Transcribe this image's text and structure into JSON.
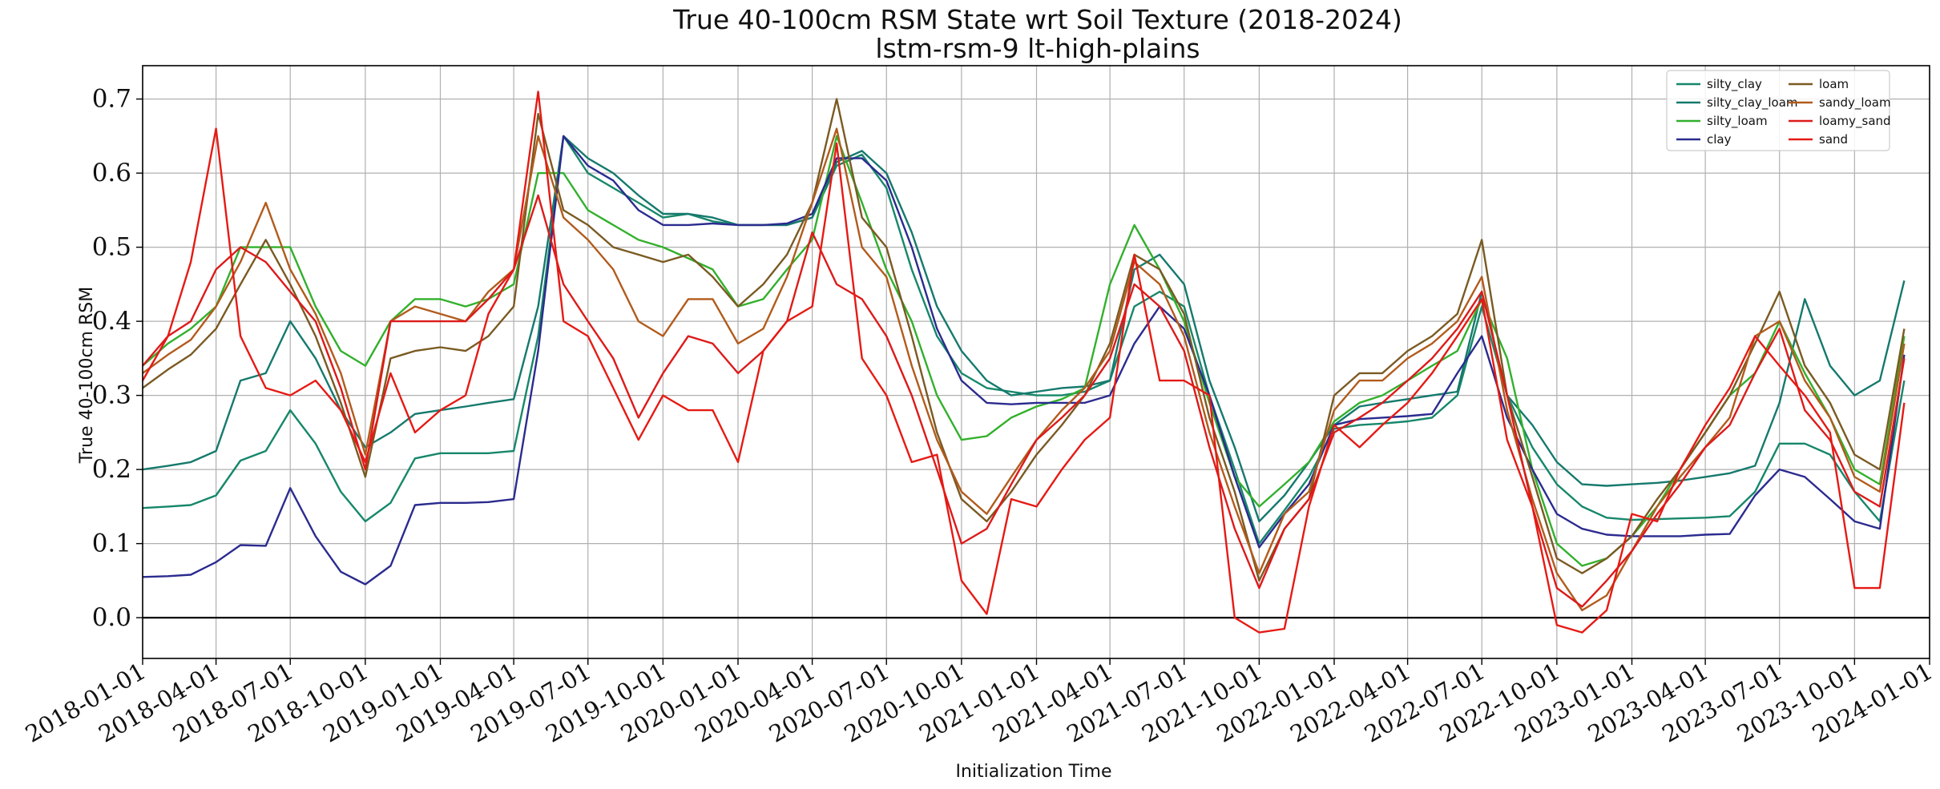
{
  "chart_data": {
    "type": "line",
    "title": "True 40-100cm RSM State wrt Soil Texture (2018-2024)",
    "subtitle": "lstm-rsm-9 lt-high-plains",
    "xlabel": "Initialization Time",
    "ylabel": "True 40-100cm RSM",
    "x_range": [
      "2018-01-01",
      "2024-01-01"
    ],
    "ylim": [
      -0.055,
      0.745
    ],
    "y_ticks": [
      0.0,
      0.1,
      0.2,
      0.3,
      0.4,
      0.5,
      0.6,
      0.7
    ],
    "y_tick_labels": [
      "0.0",
      "0.1",
      "0.2",
      "0.3",
      "0.4",
      "0.5",
      "0.6",
      "0.7"
    ],
    "x_ticks": [
      "2018-01-01",
      "2018-04-01",
      "2018-07-01",
      "2018-10-01",
      "2019-01-01",
      "2019-04-01",
      "2019-07-01",
      "2019-10-01",
      "2020-01-01",
      "2020-04-01",
      "2020-07-01",
      "2020-10-01",
      "2021-01-01",
      "2021-04-01",
      "2021-07-01",
      "2021-10-01",
      "2022-01-01",
      "2022-04-01",
      "2022-07-01",
      "2022-10-01",
      "2023-01-01",
      "2023-04-01",
      "2023-07-01",
      "2023-10-01",
      "2024-01-01"
    ],
    "grid": true,
    "zero_line": true,
    "legend": {
      "placement": "top-right",
      "columns": 2
    },
    "dates": [
      "2018-01-01",
      "2018-02-01",
      "2018-03-01",
      "2018-04-01",
      "2018-05-01",
      "2018-06-01",
      "2018-07-01",
      "2018-08-01",
      "2018-09-01",
      "2018-10-01",
      "2018-11-01",
      "2018-12-01",
      "2019-01-01",
      "2019-02-01",
      "2019-03-01",
      "2019-04-01",
      "2019-05-01",
      "2019-06-01",
      "2019-07-01",
      "2019-08-01",
      "2019-09-01",
      "2019-10-01",
      "2019-11-01",
      "2019-12-01",
      "2020-01-01",
      "2020-02-01",
      "2020-03-01",
      "2020-04-01",
      "2020-05-01",
      "2020-06-01",
      "2020-07-01",
      "2020-08-01",
      "2020-09-01",
      "2020-10-01",
      "2020-11-01",
      "2020-12-01",
      "2021-01-01",
      "2021-02-01",
      "2021-03-01",
      "2021-04-01",
      "2021-05-01",
      "2021-06-01",
      "2021-07-01",
      "2021-08-01",
      "2021-09-01",
      "2021-10-01",
      "2021-11-01",
      "2021-12-01",
      "2022-01-01",
      "2022-02-01",
      "2022-03-01",
      "2022-04-01",
      "2022-05-01",
      "2022-06-01",
      "2022-07-01",
      "2022-08-01",
      "2022-09-01",
      "2022-10-01",
      "2022-11-01",
      "2022-12-01",
      "2023-01-01",
      "2023-02-01",
      "2023-03-01",
      "2023-04-01",
      "2023-05-01",
      "2023-06-01",
      "2023-07-01",
      "2023-08-01",
      "2023-09-01",
      "2023-10-01",
      "2023-11-01",
      "2023-12-01"
    ],
    "series": [
      {
        "name": "silty_clay",
        "color": "#16876a",
        "values": [
          0.148,
          0.15,
          0.152,
          0.165,
          0.212,
          0.225,
          0.28,
          0.235,
          0.17,
          0.13,
          0.155,
          0.215,
          0.222,
          0.222,
          0.222,
          0.225,
          0.38,
          0.65,
          0.6,
          0.58,
          0.56,
          0.54,
          0.545,
          0.535,
          0.53,
          0.53,
          0.53,
          0.54,
          0.61,
          0.625,
          0.58,
          0.47,
          0.38,
          0.33,
          0.31,
          0.305,
          0.3,
          0.3,
          0.305,
          0.32,
          0.42,
          0.44,
          0.42,
          0.3,
          0.2,
          0.1,
          0.145,
          0.19,
          0.255,
          0.26,
          0.262,
          0.265,
          0.27,
          0.3,
          0.42,
          0.3,
          0.23,
          0.18,
          0.15,
          0.135,
          0.132,
          0.133,
          0.134,
          0.135,
          0.137,
          0.17,
          0.235,
          0.235,
          0.22,
          0.17,
          0.13,
          0.32
        ]
      },
      {
        "name": "silty_clay_loam",
        "color": "#15796d",
        "values": [
          0.2,
          0.205,
          0.21,
          0.225,
          0.32,
          0.33,
          0.4,
          0.35,
          0.28,
          0.23,
          0.25,
          0.275,
          0.28,
          0.285,
          0.29,
          0.295,
          0.42,
          0.65,
          0.62,
          0.6,
          0.57,
          0.545,
          0.545,
          0.54,
          0.53,
          0.53,
          0.53,
          0.54,
          0.615,
          0.63,
          0.6,
          0.52,
          0.42,
          0.36,
          0.32,
          0.3,
          0.305,
          0.31,
          0.312,
          0.32,
          0.47,
          0.49,
          0.45,
          0.32,
          0.23,
          0.13,
          0.165,
          0.21,
          0.26,
          0.285,
          0.29,
          0.295,
          0.3,
          0.305,
          0.44,
          0.3,
          0.26,
          0.21,
          0.18,
          0.178,
          0.18,
          0.182,
          0.185,
          0.19,
          0.195,
          0.205,
          0.29,
          0.43,
          0.34,
          0.3,
          0.32,
          0.455
        ]
      },
      {
        "name": "silty_loam",
        "color": "#32b02c",
        "values": [
          0.34,
          0.37,
          0.39,
          0.42,
          0.5,
          0.5,
          0.5,
          0.42,
          0.36,
          0.34,
          0.4,
          0.43,
          0.43,
          0.42,
          0.43,
          0.45,
          0.6,
          0.6,
          0.55,
          0.53,
          0.51,
          0.5,
          0.485,
          0.47,
          0.42,
          0.43,
          0.47,
          0.51,
          0.65,
          0.56,
          0.47,
          0.4,
          0.3,
          0.24,
          0.245,
          0.27,
          0.285,
          0.295,
          0.31,
          0.45,
          0.53,
          0.47,
          0.4,
          0.29,
          0.19,
          0.15,
          0.18,
          0.21,
          0.265,
          0.29,
          0.3,
          0.32,
          0.34,
          0.36,
          0.43,
          0.35,
          0.2,
          0.1,
          0.07,
          0.08,
          0.11,
          0.15,
          0.2,
          0.25,
          0.3,
          0.33,
          0.4,
          0.33,
          0.27,
          0.2,
          0.18,
          0.38
        ]
      },
      {
        "name": "clay",
        "color": "#2b2b8f",
        "values": [
          0.055,
          0.056,
          0.058,
          0.075,
          0.098,
          0.097,
          0.175,
          0.11,
          0.062,
          0.045,
          0.07,
          0.152,
          0.155,
          0.155,
          0.156,
          0.16,
          0.36,
          0.65,
          0.61,
          0.59,
          0.55,
          0.53,
          0.53,
          0.532,
          0.53,
          0.53,
          0.532,
          0.545,
          0.62,
          0.62,
          0.59,
          0.5,
          0.39,
          0.32,
          0.29,
          0.288,
          0.29,
          0.29,
          0.29,
          0.3,
          0.37,
          0.42,
          0.39,
          0.3,
          0.19,
          0.095,
          0.14,
          0.18,
          0.26,
          0.268,
          0.27,
          0.272,
          0.275,
          0.33,
          0.38,
          0.27,
          0.2,
          0.14,
          0.12,
          0.112,
          0.11,
          0.11,
          0.11,
          0.112,
          0.113,
          0.165,
          0.2,
          0.19,
          0.16,
          0.13,
          0.12,
          0.355
        ]
      },
      {
        "name": "loam",
        "color": "#7a5a22",
        "values": [
          0.31,
          0.335,
          0.355,
          0.39,
          0.45,
          0.51,
          0.45,
          0.38,
          0.29,
          0.19,
          0.35,
          0.36,
          0.365,
          0.36,
          0.38,
          0.42,
          0.68,
          0.55,
          0.53,
          0.5,
          0.49,
          0.48,
          0.49,
          0.46,
          0.42,
          0.45,
          0.49,
          0.56,
          0.7,
          0.54,
          0.5,
          0.38,
          0.25,
          0.16,
          0.13,
          0.17,
          0.22,
          0.26,
          0.3,
          0.37,
          0.49,
          0.47,
          0.41,
          0.27,
          0.17,
          0.05,
          0.12,
          0.16,
          0.3,
          0.33,
          0.33,
          0.36,
          0.38,
          0.41,
          0.51,
          0.3,
          0.19,
          0.08,
          0.06,
          0.08,
          0.11,
          0.16,
          0.2,
          0.25,
          0.3,
          0.37,
          0.44,
          0.34,
          0.29,
          0.22,
          0.2,
          0.39
        ]
      },
      {
        "name": "sandy_loam",
        "color": "#b25b1c",
        "values": [
          0.33,
          0.355,
          0.375,
          0.42,
          0.48,
          0.56,
          0.47,
          0.41,
          0.33,
          0.22,
          0.4,
          0.42,
          0.41,
          0.4,
          0.44,
          0.47,
          0.65,
          0.54,
          0.51,
          0.47,
          0.4,
          0.38,
          0.43,
          0.43,
          0.37,
          0.39,
          0.46,
          0.56,
          0.66,
          0.5,
          0.46,
          0.34,
          0.24,
          0.17,
          0.14,
          0.19,
          0.24,
          0.28,
          0.31,
          0.36,
          0.48,
          0.45,
          0.38,
          0.25,
          0.15,
          0.06,
          0.14,
          0.17,
          0.28,
          0.32,
          0.32,
          0.35,
          0.37,
          0.4,
          0.46,
          0.28,
          0.16,
          0.06,
          0.01,
          0.03,
          0.09,
          0.15,
          0.19,
          0.23,
          0.27,
          0.38,
          0.4,
          0.32,
          0.27,
          0.19,
          0.17,
          0.37
        ]
      },
      {
        "name": "loamy_sand",
        "color": "#dd1a1a",
        "values": [
          0.34,
          0.38,
          0.4,
          0.47,
          0.5,
          0.48,
          0.44,
          0.4,
          0.31,
          0.2,
          0.4,
          0.4,
          0.4,
          0.4,
          0.43,
          0.47,
          0.57,
          0.45,
          0.4,
          0.35,
          0.27,
          0.33,
          0.38,
          0.37,
          0.33,
          0.36,
          0.4,
          0.52,
          0.45,
          0.43,
          0.38,
          0.3,
          0.2,
          0.1,
          0.12,
          0.18,
          0.24,
          0.27,
          0.3,
          0.35,
          0.45,
          0.42,
          0.36,
          0.23,
          0.12,
          0.04,
          0.12,
          0.16,
          0.25,
          0.27,
          0.29,
          0.32,
          0.35,
          0.39,
          0.44,
          0.3,
          0.15,
          0.04,
          0.015,
          0.05,
          0.09,
          0.14,
          0.18,
          0.23,
          0.26,
          0.33,
          0.39,
          0.28,
          0.24,
          0.17,
          0.15,
          0.35
        ]
      },
      {
        "name": "sand",
        "color": "#e61a14",
        "values": [
          0.32,
          0.38,
          0.48,
          0.66,
          0.38,
          0.31,
          0.3,
          0.32,
          0.28,
          0.21,
          0.33,
          0.25,
          0.28,
          0.3,
          0.41,
          0.47,
          0.71,
          0.4,
          0.38,
          0.31,
          0.24,
          0.3,
          0.28,
          0.28,
          0.21,
          0.36,
          0.4,
          0.42,
          0.64,
          0.35,
          0.3,
          0.21,
          0.22,
          0.05,
          0.005,
          0.16,
          0.15,
          0.2,
          0.24,
          0.27,
          0.49,
          0.32,
          0.32,
          0.3,
          0.0,
          -0.02,
          -0.015,
          0.15,
          0.26,
          0.23,
          0.26,
          0.29,
          0.33,
          0.38,
          0.43,
          0.24,
          0.15,
          -0.01,
          -0.02,
          0.01,
          0.14,
          0.13,
          0.2,
          0.26,
          0.31,
          0.38,
          0.34,
          0.3,
          0.25,
          0.04,
          0.04,
          0.29
        ]
      }
    ]
  }
}
